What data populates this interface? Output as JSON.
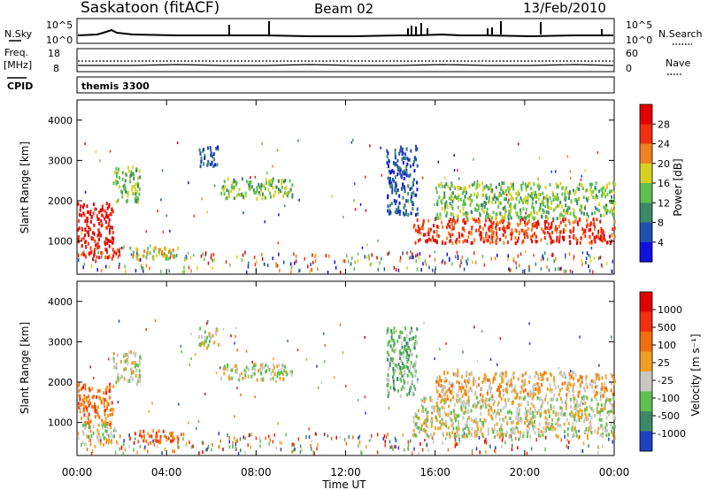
{
  "header": {
    "station": "Saskatoon (fitACF)",
    "beam": "Beam 02",
    "date": "13/Feb/2010"
  },
  "top_panels": {
    "nsky_label": "N.Sky",
    "nsky_ticks": [
      "10^5",
      "10^0"
    ],
    "nsearch_ticks": [
      "10^5",
      "10^0"
    ],
    "nsearch_label": "N.Search",
    "freq_label_1": "Freq.",
    "freq_label_2": "[MHz]",
    "freq_ticks": [
      "18",
      "8"
    ],
    "nave_ticks": [
      "60",
      "0"
    ],
    "nave_label": "Nave",
    "cpid_label": "CPID",
    "cpid_value": "themis 3300"
  },
  "chart_data": [
    {
      "type": "heatmap",
      "name": "power",
      "ylabel": "Slant Range [km]",
      "yticks": [
        "4000",
        "3000",
        "2000",
        "1000"
      ],
      "ylim": [
        180,
        4500
      ],
      "xlim": [
        0,
        24
      ],
      "colorbar_label": "Power [dB]",
      "colorbar_ticks": [
        "28",
        "24",
        "20",
        "16",
        "12",
        "8",
        "4"
      ],
      "colors": [
        "#1010e0",
        "#2050b0",
        "#3a8a6a",
        "#5fc050",
        "#d8d020",
        "#f08020",
        "#f03010",
        "#e00000"
      ],
      "patches": [
        {
          "t0": 0.0,
          "t1": 1.6,
          "r0": 800,
          "r1": 1900,
          "level": 7
        },
        {
          "t0": 0.2,
          "t1": 1.9,
          "r0": 500,
          "r1": 800,
          "level": 6
        },
        {
          "t0": 1.6,
          "t1": 2.8,
          "r0": 1900,
          "r1": 2800,
          "level": 3
        },
        {
          "t0": 2.3,
          "t1": 4.5,
          "r0": 500,
          "r1": 800,
          "level": 4
        },
        {
          "t0": 5.4,
          "t1": 6.3,
          "r0": 2800,
          "r1": 3300,
          "level": 1
        },
        {
          "t0": 6.4,
          "t1": 9.6,
          "r0": 2000,
          "r1": 2500,
          "level": 3
        },
        {
          "t0": 13.8,
          "t1": 15.2,
          "r0": 1600,
          "r1": 3300,
          "level": 1
        },
        {
          "t0": 15.0,
          "t1": 24.0,
          "r0": 900,
          "r1": 1500,
          "level": 6
        },
        {
          "t0": 16.0,
          "t1": 24.0,
          "r0": 1500,
          "r1": 2400,
          "level": 3
        }
      ]
    },
    {
      "type": "heatmap",
      "name": "velocity",
      "ylabel": "Slant Range [km]",
      "yticks": [
        "4000",
        "3000",
        "2000",
        "1000"
      ],
      "ylim": [
        180,
        4500
      ],
      "xlim": [
        0,
        24
      ],
      "colorbar_label": "Velocity [m s⁻¹]",
      "colorbar_ticks": [
        "1000",
        "500",
        "100",
        "25",
        "-25",
        "-100",
        "-500",
        "-1000"
      ],
      "colors": [
        "#2040c0",
        "#3a8a6a",
        "#5fc050",
        "#c8c8c0",
        "#f0a020",
        "#f07010",
        "#f03010",
        "#e00000"
      ],
      "patches": [
        {
          "t0": 0.0,
          "t1": 1.6,
          "r0": 900,
          "r1": 1900,
          "level": 5
        },
        {
          "t0": 0.2,
          "t1": 1.8,
          "r0": 400,
          "r1": 900,
          "level": 3
        },
        {
          "t0": 1.6,
          "t1": 2.8,
          "r0": 1900,
          "r1": 2700,
          "level": 3
        },
        {
          "t0": 2.5,
          "t1": 4.5,
          "r0": 450,
          "r1": 750,
          "level": 5
        },
        {
          "t0": 5.4,
          "t1": 6.3,
          "r0": 2800,
          "r1": 3300,
          "level": 3
        },
        {
          "t0": 6.4,
          "t1": 9.6,
          "r0": 2000,
          "r1": 2400,
          "level": 3
        },
        {
          "t0": 13.8,
          "t1": 15.2,
          "r0": 1600,
          "r1": 3300,
          "level": 2
        },
        {
          "t0": 15.0,
          "t1": 24.0,
          "r0": 600,
          "r1": 1600,
          "level": 3
        },
        {
          "t0": 16.0,
          "t1": 24.0,
          "r0": 1600,
          "r1": 2200,
          "level": 4
        }
      ]
    }
  ],
  "xaxis": {
    "ticks": [
      "00:00",
      "04:00",
      "08:00",
      "12:00",
      "16:00",
      "20:00",
      "00:00"
    ],
    "label": "Time UT"
  }
}
